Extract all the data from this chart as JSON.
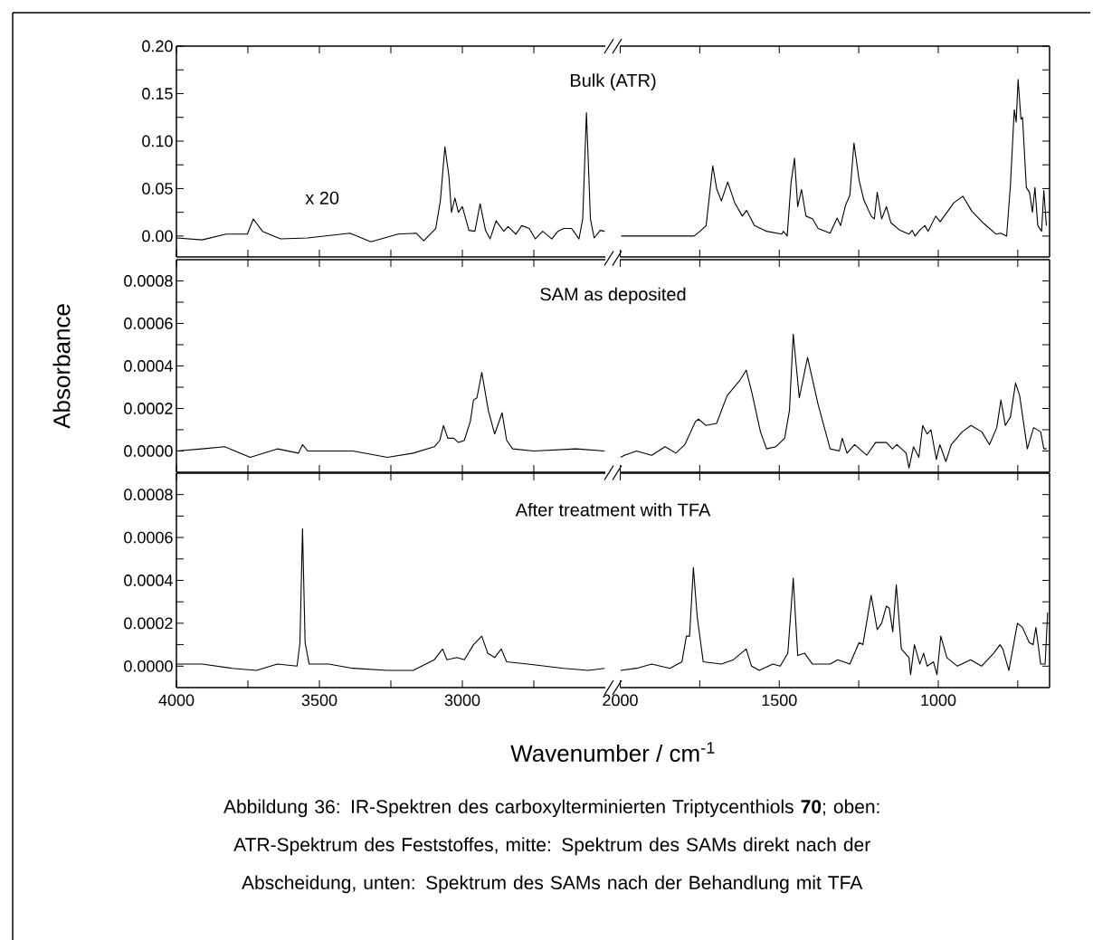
{
  "chart_data": [
    {
      "type": "line",
      "title": "Bulk (ATR)",
      "annotations": [
        "x 20"
      ],
      "color": "#000000",
      "tick_labels": "y",
      "xlim": [
        4000,
        2500
      ],
      "ylim": [
        -0.022,
        0.2
      ],
      "xticks": [
        {
          "value": 4000,
          "label": null
        },
        {
          "value": 3750,
          "label": null
        },
        {
          "value": 3500,
          "label": null
        },
        {
          "value": 3250,
          "label": null
        },
        {
          "value": 3000,
          "label": null
        },
        {
          "value": 2750,
          "label": null
        }
      ],
      "yticks": [
        {
          "value": 0,
          "label": "0.00"
        },
        {
          "value": 0.025,
          "label": null
        },
        {
          "value": 0.05,
          "label": "0.05"
        },
        {
          "value": 0.075,
          "label": null
        },
        {
          "value": 0.1,
          "label": "0.10"
        },
        {
          "value": 0.125,
          "label": null
        },
        {
          "value": 0.15,
          "label": "0.15"
        },
        {
          "value": 0.175,
          "label": null
        },
        {
          "value": 0.2,
          "label": "0.20"
        }
      ],
      "x": [
        4000,
        3910,
        3826,
        3752,
        3731,
        3699,
        3636,
        3541,
        3393,
        3320,
        3225,
        3161,
        3135,
        3093,
        3077,
        3061,
        3047,
        3038,
        3026,
        3014,
        3000,
        2977,
        2956,
        2938,
        2919,
        2903,
        2882,
        2855,
        2840,
        2813,
        2792,
        2766,
        2745,
        2719,
        2687,
        2666,
        2645,
        2618,
        2592,
        2579,
        2566,
        2552,
        2539,
        2518,
        2502
      ],
      "values": [
        -0.002,
        -0.004,
        0.002,
        0.002,
        0.018,
        0.005,
        -0.003,
        -0.002,
        0.003,
        -0.006,
        0.002,
        0.003,
        -0.005,
        0.008,
        0.037,
        0.094,
        0.063,
        0.025,
        0.04,
        0.025,
        0.031,
        0.006,
        0.005,
        0.034,
        0.006,
        -0.003,
        0.016,
        0.005,
        0.01,
        0.002,
        0.011,
        0.008,
        -0.003,
        0.005,
        -0.003,
        0.005,
        0.008,
        0.008,
        -0.003,
        0.018,
        0.13,
        0.018,
        -0.002,
        0.006,
        0.005
      ]
    },
    {
      "type": "line",
      "color": "#000000",
      "tick_labels": false,
      "xlim": [
        2000,
        650
      ],
      "ylim": [
        -0.022,
        0.2
      ],
      "xticks": [
        {
          "value": 2000,
          "label": null
        },
        {
          "value": 1750,
          "label": null
        },
        {
          "value": 1500,
          "label": null
        },
        {
          "value": 1250,
          "label": null
        },
        {
          "value": 1000,
          "label": null
        },
        {
          "value": 750,
          "label": null
        }
      ],
      "yticks": [
        {
          "value": 0,
          "label": null
        },
        {
          "value": 0.025,
          "label": null
        },
        {
          "value": 0.05,
          "label": null
        },
        {
          "value": 0.075,
          "label": null
        },
        {
          "value": 0.1,
          "label": null
        },
        {
          "value": 0.125,
          "label": null
        },
        {
          "value": 0.15,
          "label": null
        },
        {
          "value": 0.175,
          "label": null
        },
        {
          "value": 0.2,
          "label": null
        }
      ],
      "x": [
        1997,
        1768,
        1749,
        1730,
        1709,
        1697,
        1682,
        1662,
        1640,
        1616,
        1603,
        1578,
        1540,
        1492,
        1487,
        1475,
        1463,
        1452,
        1442,
        1430,
        1416,
        1395,
        1378,
        1340,
        1318,
        1307,
        1292,
        1278,
        1265,
        1249,
        1234,
        1211,
        1201,
        1192,
        1178,
        1163,
        1149,
        1120,
        1092,
        1082,
        1073,
        1056,
        1042,
        1032,
        1008,
        994,
        951,
        923,
        894,
        856,
        818,
        804,
        785,
        773,
        761,
        755,
        749,
        740,
        735,
        723,
        713,
        704,
        696,
        687,
        675,
        668,
        660
      ],
      "values": [
        0.0,
        0.0,
        0.005,
        0.011,
        0.074,
        0.05,
        0.037,
        0.057,
        0.035,
        0.021,
        0.027,
        0.011,
        0.005,
        0.002,
        0.005,
        0.0,
        0.056,
        0.082,
        0.031,
        0.049,
        0.021,
        0.018,
        0.008,
        0.003,
        0.019,
        0.011,
        0.032,
        0.043,
        0.098,
        0.059,
        0.038,
        0.021,
        0.018,
        0.046,
        0.018,
        0.031,
        0.014,
        0.006,
        0.002,
        0.006,
        0.0,
        0.007,
        0.011,
        0.005,
        0.021,
        0.015,
        0.035,
        0.042,
        0.026,
        0.013,
        0.002,
        0.003,
        0.0,
        0.054,
        0.133,
        0.12,
        0.165,
        0.123,
        0.125,
        0.051,
        0.046,
        0.025,
        0.051,
        0.011,
        0.005,
        0.048,
        0.011
      ]
    },
    {
      "type": "line",
      "title": "SAM as deposited",
      "ylabel": "Absorbance",
      "color": "#000000",
      "tick_labels": "y",
      "xlim": [
        4000,
        2500
      ],
      "ylim": [
        -0.0001,
        0.0009
      ],
      "xticks": [
        {
          "value": 4000,
          "label": null
        },
        {
          "value": 3750,
          "label": null
        },
        {
          "value": 3500,
          "label": null
        },
        {
          "value": 3250,
          "label": null
        },
        {
          "value": 3000,
          "label": null
        },
        {
          "value": 2750,
          "label": null
        }
      ],
      "yticks": [
        {
          "value": 0,
          "label": "0.0000"
        },
        {
          "value": 0.0001,
          "label": null
        },
        {
          "value": 0.0002,
          "label": "0.0002"
        },
        {
          "value": 0.0003,
          "label": null
        },
        {
          "value": 0.0004,
          "label": "0.0004"
        },
        {
          "value": 0.0005,
          "label": null
        },
        {
          "value": 0.0006,
          "label": "0.0006"
        },
        {
          "value": 0.0007,
          "label": null
        },
        {
          "value": 0.0008,
          "label": "0.0008"
        }
      ],
      "x": [
        4000,
        3910,
        3831,
        3742,
        3647,
        3573,
        3559,
        3541,
        3383,
        3262,
        3172,
        3098,
        3079,
        3066,
        3051,
        3030,
        3014,
        2993,
        2972,
        2961,
        2949,
        2932,
        2909,
        2887,
        2861,
        2845,
        2824,
        2750,
        2602,
        2502
      ],
      "values": [
        0,
        1e-05,
        2e-05,
        -3e-05,
        1e-05,
        -1e-05,
        3e-05,
        0,
        0,
        -3e-05,
        -1e-05,
        2e-05,
        5e-05,
        0.00012,
        6e-05,
        6e-05,
        4e-05,
        5e-05,
        0.00014,
        0.00024,
        0.00025,
        0.00037,
        0.00019,
        8e-05,
        0.00018,
        5e-05,
        1e-05,
        0,
        1e-05,
        0
      ]
    },
    {
      "type": "line",
      "color": "#000000",
      "tick_labels": false,
      "xlim": [
        2000,
        650
      ],
      "ylim": [
        -0.0001,
        0.0009
      ],
      "xticks": [
        {
          "value": 2000,
          "label": null
        },
        {
          "value": 1750,
          "label": null
        },
        {
          "value": 1500,
          "label": null
        },
        {
          "value": 1250,
          "label": null
        },
        {
          "value": 1000,
          "label": null
        },
        {
          "value": 750,
          "label": null
        }
      ],
      "yticks": [
        {
          "value": 0,
          "label": null
        },
        {
          "value": 0.0001,
          "label": null
        },
        {
          "value": 0.0002,
          "label": null
        },
        {
          "value": 0.0003,
          "label": null
        },
        {
          "value": 0.0004,
          "label": null
        },
        {
          "value": 0.0005,
          "label": null
        },
        {
          "value": 0.0006,
          "label": null
        },
        {
          "value": 0.0007,
          "label": null
        },
        {
          "value": 0.0008,
          "label": null
        }
      ],
      "x": [
        1999,
        1987,
        1949,
        1901,
        1859,
        1825,
        1797,
        1763,
        1754,
        1730,
        1697,
        1664,
        1625,
        1604,
        1587,
        1559,
        1540,
        1511,
        1483,
        1468,
        1456,
        1437,
        1411,
        1378,
        1340,
        1311,
        1302,
        1287,
        1263,
        1225,
        1197,
        1163,
        1144,
        1130,
        1101,
        1092,
        1078,
        1061,
        1049,
        1035,
        1023,
        1006,
        995,
        976,
        959,
        925,
        897,
        863,
        839,
        816,
        803,
        789,
        773,
        757,
        744,
        720,
        700,
        678,
        668,
        659
      ],
      "values": [
        -3e-05,
        -2e-05,
        0,
        -2e-05,
        2e-05,
        -1e-05,
        3e-05,
        0.00014,
        0.00015,
        0.00012,
        0.00013,
        0.00026,
        0.00033,
        0.00038,
        0.00028,
        9e-05,
        1e-05,
        2e-05,
        6e-05,
        0.00019,
        0.00055,
        0.00025,
        0.00044,
        0.00022,
        1e-05,
        0,
        6e-05,
        -1e-05,
        3e-05,
        -2e-05,
        4e-05,
        4e-05,
        1e-05,
        3e-05,
        -1e-05,
        -8e-05,
        2e-05,
        -3e-05,
        0.00012,
        8e-05,
        0.0001,
        -4e-05,
        3e-05,
        -5e-05,
        3e-05,
        9e-05,
        0.00012,
        9e-05,
        3e-05,
        0.00011,
        0.00024,
        0.00012,
        0.00016,
        0.00032,
        0.00026,
        1e-05,
        0.00011,
        9e-05,
        1e-05,
        1e-05
      ]
    },
    {
      "type": "line",
      "title": "After treatment with TFA",
      "xlabel": "Wavenumber / cm$^{-1}$",
      "annotations": [
        "Abbildung 36: IR-Spektren des carboxylterminierten Triptycenthiols **70**; oben: ATR-Spektrum des Feststoffes, mitte: Spektrum des SAMs direkt nach der Abscheidung, unten:  Spektrum des SAMs nach der Behandlung mit TFA"
      ],
      "color": "#000000",
      "xlim": [
        4000,
        2500
      ],
      "ylim": [
        -0.0001,
        0.0009
      ],
      "xticks": [
        4000,
        {
          "value": 3750,
          "label": null
        },
        3500,
        {
          "value": 3250,
          "label": null
        },
        3000,
        {
          "value": 2750,
          "label": null
        }
      ],
      "yticks": [
        {
          "value": 0,
          "label": "0.0000"
        },
        {
          "value": 0.0001,
          "label": null
        },
        {
          "value": 0.0002,
          "label": "0.0002"
        },
        {
          "value": 0.0003,
          "label": null
        },
        {
          "value": 0.0004,
          "label": "0.0004"
        },
        {
          "value": 0.0005,
          "label": null
        },
        {
          "value": 0.0006,
          "label": "0.0006"
        },
        {
          "value": 0.0007,
          "label": null
        },
        {
          "value": 0.0008,
          "label": "0.0008"
        }
      ],
      "x": [
        4000,
        3910,
        3805,
        3720,
        3647,
        3578,
        3568,
        3559,
        3550,
        3536,
        3467,
        3383,
        3262,
        3172,
        3098,
        3069,
        3054,
        3019,
        2993,
        2961,
        2932,
        2911,
        2887,
        2864,
        2845,
        2771,
        2645,
        2560,
        2502
      ],
      "values": [
        1e-05,
        1e-05,
        -1e-05,
        -2e-05,
        1e-05,
        0,
        0.00011,
        0.00064,
        0.00011,
        1e-05,
        1e-05,
        -1e-05,
        -2e-05,
        -2e-05,
        3e-05,
        8e-05,
        3e-05,
        4e-05,
        3e-05,
        0.0001,
        0.00014,
        6e-05,
        4e-05,
        8e-05,
        2e-05,
        1e-05,
        -1e-05,
        -2e-05,
        -1e-05
      ]
    },
    {
      "type": "line",
      "color": "#000000",
      "tick_labels": "x",
      "xlim": [
        2000,
        650
      ],
      "ylim": [
        -0.0001,
        0.0009
      ],
      "xticks": [
        2000,
        {
          "value": 1750,
          "label": null
        },
        1500,
        {
          "value": 1250,
          "label": null
        },
        1000,
        {
          "value": 750,
          "label": null
        }
      ],
      "yticks": [
        {
          "value": 0,
          "label": null
        },
        {
          "value": 0.0001,
          "label": null
        },
        {
          "value": 0.0002,
          "label": null
        },
        {
          "value": 0.0003,
          "label": null
        },
        {
          "value": 0.0004,
          "label": null
        },
        {
          "value": 0.0005,
          "label": null
        },
        {
          "value": 0.0006,
          "label": null
        },
        {
          "value": 0.0007,
          "label": null
        },
        {
          "value": 0.0008,
          "label": null
        }
      ],
      "x": [
        1999,
        1949,
        1901,
        1844,
        1806,
        1792,
        1782,
        1770,
        1758,
        1739,
        1682,
        1644,
        1604,
        1587,
        1563,
        1520,
        1497,
        1473,
        1456,
        1442,
        1420,
        1396,
        1340,
        1316,
        1278,
        1249,
        1237,
        1211,
        1192,
        1178,
        1163,
        1154,
        1143,
        1132,
        1116,
        1092,
        1087,
        1075,
        1058,
        1046,
        1035,
        1015,
        1004,
        992,
        973,
        940,
        898,
        864,
        826,
        806,
        797,
        778,
        751,
        735,
        714,
        702,
        693,
        678,
        664,
        656
      ],
      "values": [
        -2e-05,
        -1e-05,
        1e-05,
        -1e-05,
        2e-05,
        0.00014,
        0.00014,
        0.00046,
        0.00023,
        2e-05,
        1e-05,
        3e-05,
        8e-05,
        0,
        -2e-05,
        1e-05,
        0,
        6e-05,
        0.00041,
        5e-05,
        6e-05,
        1e-05,
        1e-05,
        3e-05,
        1e-05,
        0.00011,
        0.0001,
        0.00033,
        0.00017,
        0.0002,
        0.00028,
        0.00027,
        0.00016,
        0.00038,
        8e-05,
        4e-05,
        -4e-05,
        0.0001,
        1e-05,
        6e-05,
        0,
        2e-05,
        -4e-05,
        0.00014,
        4e-05,
        0,
        3e-05,
        0,
        6e-05,
        0.0001,
        8e-05,
        -2e-05,
        0.0002,
        0.00018,
        0.00011,
        0.0001,
        0.00018,
        1e-05,
        1e-05,
        0.00025
      ]
    }
  ]
}
